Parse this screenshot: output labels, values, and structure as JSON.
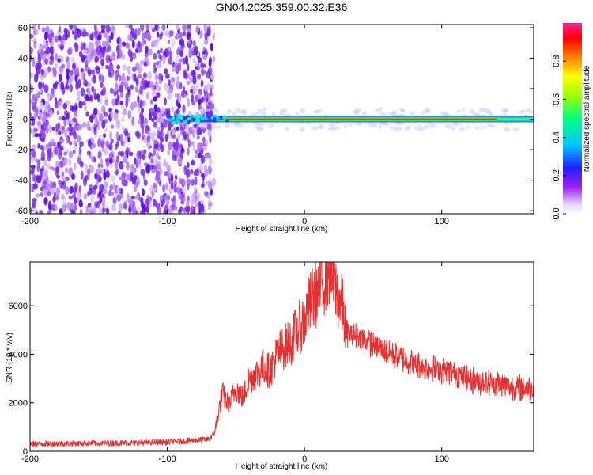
{
  "title": "GN04.2025.359.00.32.E36",
  "chart_data": [
    {
      "type": "heatmap",
      "xlabel": "Height of straight line (km)",
      "ylabel": "Frequency (Hz)",
      "xlim": [
        -200,
        167
      ],
      "ylim": [
        -62,
        62
      ],
      "xticks": [
        -200,
        -100,
        0,
        100
      ],
      "yticks": [
        -60,
        -40,
        -20,
        0,
        20,
        40,
        60
      ],
      "colorbar": {
        "label": "Normalized spectral amplitude",
        "range": [
          0,
          1
        ],
        "ticks": [
          "0.0",
          "0.2",
          "0.4",
          "0.6",
          "0.8"
        ]
      },
      "features": {
        "noise_region_x": [
          -200,
          -66
        ],
        "signal_line_frequency_hz": 0,
        "signal_start_x": -100,
        "signal_strong_x": [
          -66,
          140
        ]
      }
    },
    {
      "type": "line",
      "xlabel": "Height of straight line (km)",
      "ylabel": "SNR (10 * v/v)",
      "xlim": [
        -200,
        167
      ],
      "ylim": [
        0,
        7800
      ],
      "xticks": [
        -200,
        -100,
        0,
        100
      ],
      "yticks": [
        0,
        2000,
        4000,
        6000
      ],
      "series": [
        {
          "color": "#e83030",
          "x": [
            -200,
            -180,
            -160,
            -140,
            -120,
            -100,
            -80,
            -70,
            -66,
            -63,
            -60,
            -55,
            -50,
            -45,
            -40,
            -35,
            -30,
            -25,
            -20,
            -15,
            -10,
            -5,
            0,
            5,
            10,
            15,
            18,
            20,
            22,
            25,
            28,
            30,
            35,
            40,
            45,
            50,
            60,
            70,
            80,
            90,
            100,
            110,
            120,
            130,
            140,
            150,
            160,
            167
          ],
          "y": [
            300,
            320,
            330,
            340,
            350,
            380,
            450,
            500,
            700,
            1500,
            2400,
            1900,
            2600,
            2200,
            3000,
            3200,
            3500,
            3300,
            4000,
            4300,
            4500,
            5000,
            5400,
            6200,
            6600,
            7200,
            7500,
            7300,
            6800,
            6300,
            5900,
            4900,
            4800,
            4700,
            4550,
            4400,
            4100,
            3850,
            3600,
            3450,
            3350,
            3250,
            2950,
            2850,
            2800,
            2650,
            2600,
            2550
          ]
        }
      ]
    }
  ]
}
